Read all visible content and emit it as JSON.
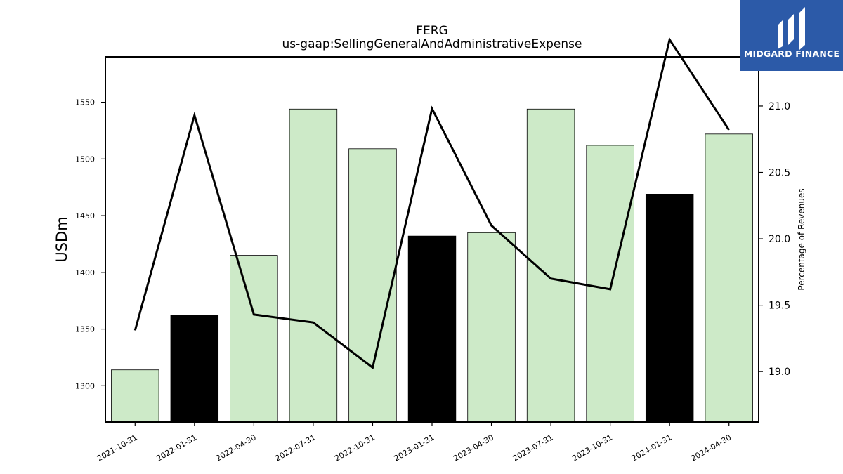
{
  "chart_data": {
    "type": "bar",
    "title": "FERG",
    "subtitle": "us-gaap:SellingGeneralAndAdministrativeExpense",
    "ylabel": "USDm",
    "y2label": "Percentage of Revenues",
    "categories": [
      "2021-10-31",
      "2022-01-31",
      "2022-04-30",
      "2022-07-31",
      "2022-10-31",
      "2023-01-31",
      "2023-04-30",
      "2023-07-31",
      "2023-10-31",
      "2024-01-31",
      "2024-04-30"
    ],
    "series": [
      {
        "type": "bar",
        "values": [
          1314,
          1362,
          1415,
          1544,
          1509,
          1432,
          1435,
          1544,
          1512,
          1469,
          1522
        ],
        "highlight": [
          false,
          true,
          false,
          false,
          false,
          true,
          false,
          false,
          false,
          true,
          false
        ]
      },
      {
        "type": "line",
        "axis": "right",
        "values": [
          19.31,
          20.93,
          19.43,
          19.37,
          19.03,
          20.98,
          20.1,
          19.7,
          19.62,
          21.5,
          20.82
        ]
      }
    ],
    "ylim": [
      1268,
      1590
    ],
    "y2lim": [
      18.62,
      21.37
    ],
    "yticks": [
      1300,
      1350,
      1400,
      1450,
      1500,
      1550
    ],
    "y2ticks": [
      "19.0",
      "19.5",
      "20.0",
      "20.5",
      "21.0"
    ],
    "colors": {
      "bar": "#cdeac8",
      "highlight_bar": "#000000",
      "line": "#000000"
    },
    "grid": false
  },
  "brand": {
    "name": "MIDGARD FINANCE",
    "color": "#2c5aa8"
  }
}
